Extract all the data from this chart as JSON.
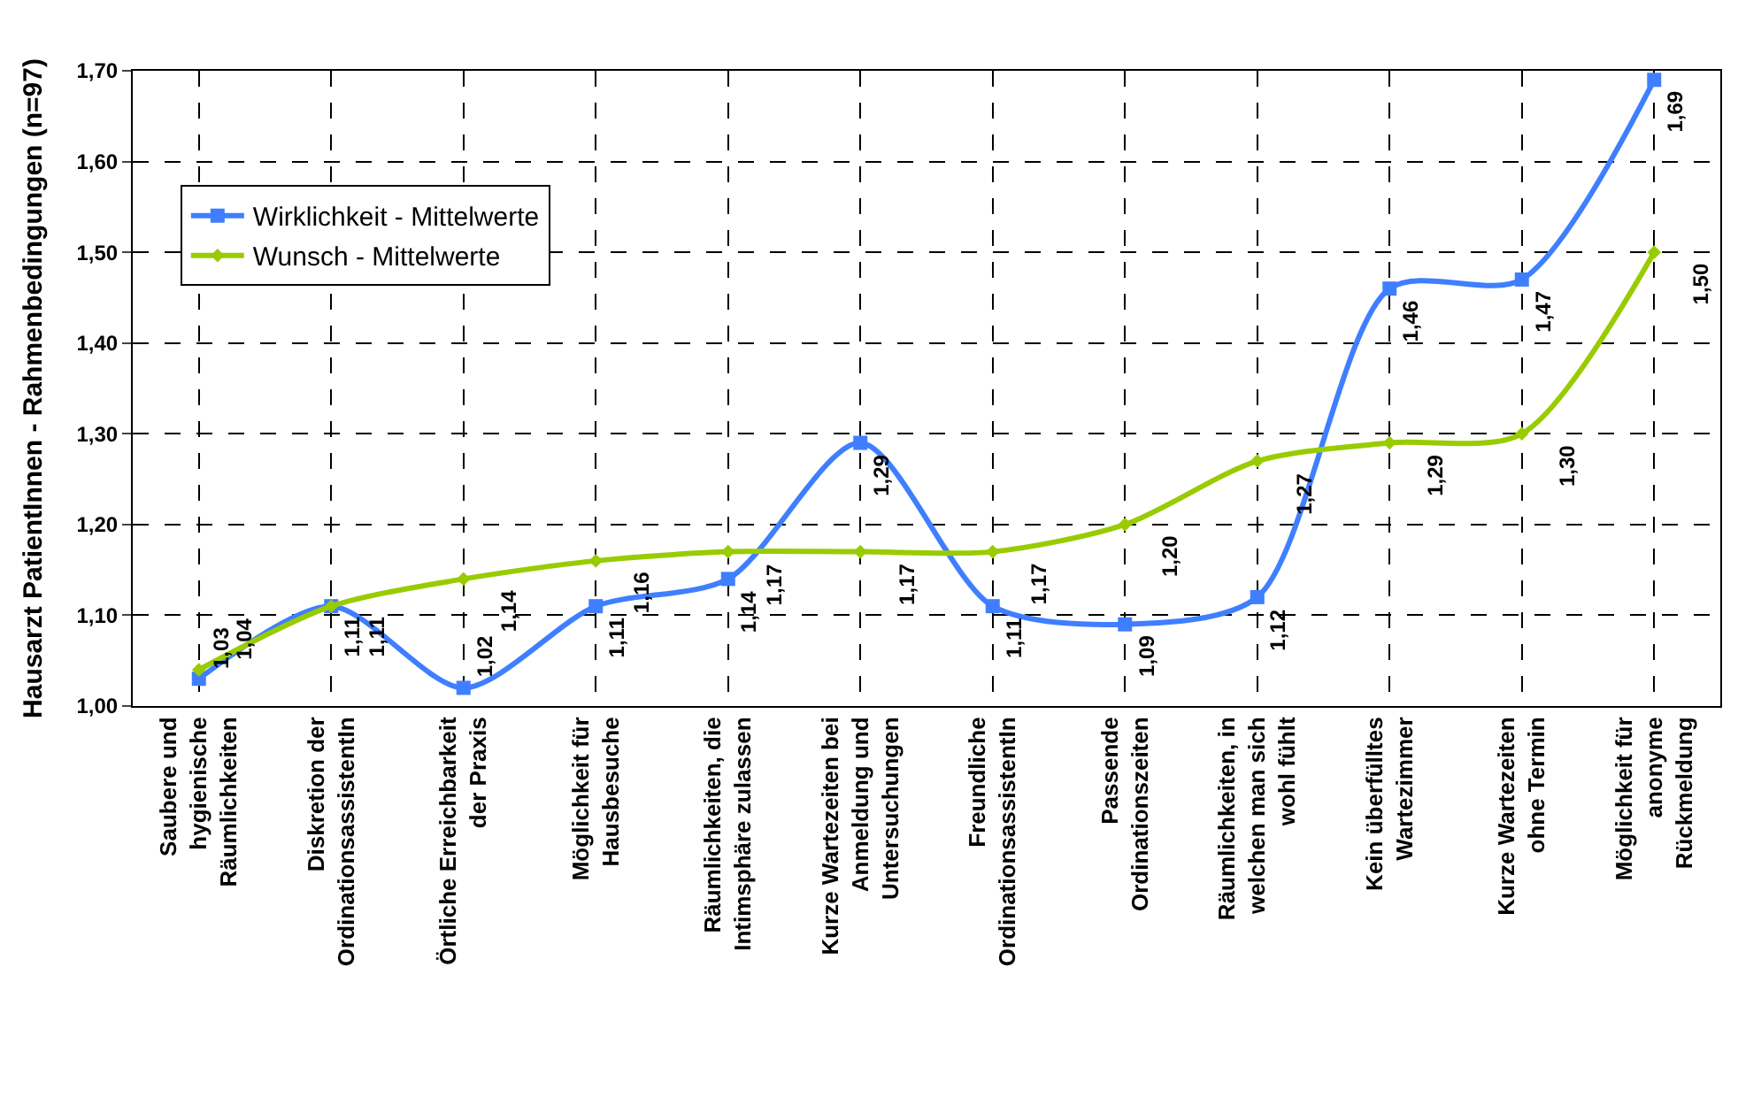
{
  "chart_data": {
    "type": "line",
    "ylabel": "Hausarzt PatientInnen - Rahmenbedingungen (n=97)",
    "categories": [
      "Saubere und\nhygienische\nRäumlichkeiten",
      "Diskretion der\nOrdinationsassistentIn",
      "Örtliche Erreichbarkeit\nder Praxis",
      "Möglichkeit für\nHausbesuche",
      "Räumlichkeiten, die\nIntimsphäre zulassen",
      "Kurze Wartezeiten bei\nAnmeldung und\nUntersuchungen",
      "Freundliche\nOrdinationsassistentIn",
      "Passende\nOrdinationszeiten",
      "Räumlichkeiten, in\nwelchen man sich\nwohl fühlt",
      "Kein überfülltes\nWartezimmer",
      "Kurze Wartezeiten\nohne Termin",
      "Möglichkeit für\nanonyme\nRückmeldung"
    ],
    "series": [
      {
        "name": "Wirklichkeit - Mittelwerte",
        "color": "#3f7fff",
        "marker": "square",
        "values": [
          1.03,
          1.11,
          1.02,
          1.11,
          1.14,
          1.29,
          1.11,
          1.09,
          1.12,
          1.46,
          1.47,
          1.69
        ],
        "value_labels": [
          "1,03",
          "1,11",
          "1,02",
          "1,11",
          "1,14",
          "1,29",
          "1,11",
          "1,09",
          "1,12",
          "1,46",
          "1,47",
          "1,69"
        ]
      },
      {
        "name": "Wunsch - Mittelwerte",
        "color": "#99cc00",
        "marker": "diamond",
        "values": [
          1.04,
          1.11,
          1.14,
          1.16,
          1.17,
          1.17,
          1.17,
          1.2,
          1.27,
          1.29,
          1.3,
          1.5
        ],
        "value_labels": [
          "1,04",
          "1,11",
          "1,14",
          "1,16",
          "1,17",
          "1,17",
          "1,17",
          "1,20",
          "1,27",
          "1,29",
          "1,30",
          "1,50"
        ]
      }
    ],
    "ylim": [
      1.0,
      1.7
    ],
    "yticks": [
      {
        "value": 1.0,
        "label": "1,00"
      },
      {
        "value": 1.1,
        "label": "1,10"
      },
      {
        "value": 1.2,
        "label": "1,20"
      },
      {
        "value": 1.3,
        "label": "1,30"
      },
      {
        "value": 1.4,
        "label": "1,40"
      },
      {
        "value": 1.5,
        "label": "1,50"
      },
      {
        "value": 1.6,
        "label": "1,60"
      },
      {
        "value": 1.7,
        "label": "1,70"
      }
    ],
    "grid": true,
    "legend": "top left"
  }
}
